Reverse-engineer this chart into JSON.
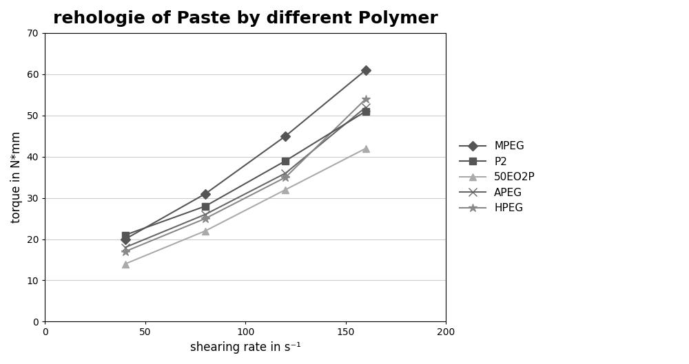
{
  "title": "rehologie of Paste by different Polymer",
  "xlabel": "shearing rate in s⁻¹",
  "ylabel": "torque in N*mm",
  "xlim": [
    0,
    200
  ],
  "ylim": [
    0,
    70
  ],
  "xticks": [
    0,
    50,
    100,
    150,
    200
  ],
  "yticks": [
    0,
    10,
    20,
    30,
    40,
    50,
    60,
    70
  ],
  "series": [
    {
      "label": "MPEG",
      "x": [
        40,
        80,
        120,
        160
      ],
      "y": [
        20,
        31,
        45,
        61
      ],
      "color": "#555555",
      "marker": "D",
      "markersize": 7,
      "linewidth": 1.5,
      "zorder": 5
    },
    {
      "label": "P2",
      "x": [
        40,
        80,
        120,
        160
      ],
      "y": [
        21,
        28,
        39,
        51
      ],
      "color": "#555555",
      "marker": "s",
      "markersize": 7,
      "linewidth": 1.5,
      "zorder": 4
    },
    {
      "label": "50EO2P",
      "x": [
        40,
        80,
        120,
        160
      ],
      "y": [
        14,
        22,
        32,
        42
      ],
      "color": "#aaaaaa",
      "marker": "^",
      "markersize": 7,
      "linewidth": 1.5,
      "zorder": 2
    },
    {
      "label": "APEG",
      "x": [
        40,
        80,
        120,
        160
      ],
      "y": [
        18,
        26,
        36,
        52
      ],
      "color": "#666666",
      "marker": "x",
      "markersize": 8,
      "linewidth": 1.5,
      "zorder": 3
    },
    {
      "label": "HPEG",
      "x": [
        40,
        80,
        120,
        160
      ],
      "y": [
        17,
        25,
        35,
        54
      ],
      "color": "#888888",
      "marker": "*",
      "markersize": 9,
      "linewidth": 1.5,
      "zorder": 3
    }
  ],
  "background_color": "#ffffff",
  "plot_bg_color": "#ffffff",
  "grid_color": "#cccccc",
  "title_fontsize": 18,
  "label_fontsize": 12,
  "legend_fontsize": 11,
  "fig_width": 10.0,
  "fig_height": 5.29
}
